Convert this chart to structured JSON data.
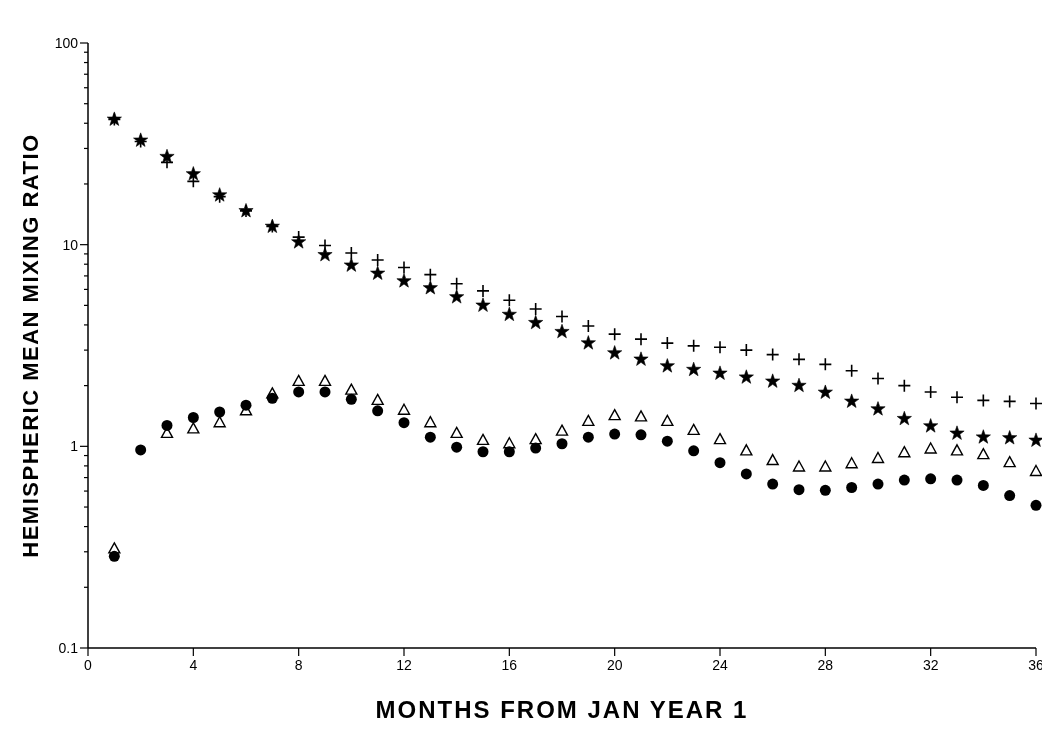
{
  "chart_data": {
    "type": "scatter",
    "xlabel": "MONTHS FROM JAN YEAR 1",
    "ylabel": "HEMISPHERIC MEAN MIXING RATIO",
    "log": "y",
    "grid": false,
    "x": [
      1,
      2,
      3,
      4,
      5,
      6,
      7,
      8,
      9,
      10,
      11,
      12,
      13,
      14,
      15,
      16,
      17,
      18,
      19,
      20,
      21,
      22,
      23,
      24,
      25,
      26,
      27,
      28,
      29,
      30,
      31,
      32,
      33,
      34,
      35,
      36
    ],
    "xlim": [
      0,
      36
    ],
    "xticks": [
      0,
      4,
      8,
      12,
      16,
      20,
      24,
      28,
      32,
      36
    ],
    "ylim": [
      0.1,
      100
    ],
    "yticks": [
      0.1,
      {
        "value": 0.2,
        "label": null
      },
      {
        "value": 0.3,
        "label": null
      },
      {
        "value": 0.4,
        "label": null
      },
      {
        "value": 0.5,
        "label": null
      },
      {
        "value": 0.6,
        "label": null
      },
      {
        "value": 0.7,
        "label": null
      },
      {
        "value": 0.8,
        "label": null
      },
      {
        "value": 0.9,
        "label": null
      },
      1,
      {
        "value": 2,
        "label": null
      },
      {
        "value": 3,
        "label": null
      },
      {
        "value": 4,
        "label": null
      },
      {
        "value": 5,
        "label": null
      },
      {
        "value": 6,
        "label": null
      },
      {
        "value": 7,
        "label": null
      },
      {
        "value": 8,
        "label": null
      },
      {
        "value": 9,
        "label": null
      },
      10,
      {
        "value": 20,
        "label": null
      },
      {
        "value": 30,
        "label": null
      },
      {
        "value": 40,
        "label": null
      },
      {
        "value": 50,
        "label": null
      },
      {
        "value": 60,
        "label": null
      },
      {
        "value": 70,
        "label": null
      },
      {
        "value": 80,
        "label": null
      },
      {
        "value": 90,
        "label": null
      },
      100
    ],
    "series": [
      {
        "color": "#000000",
        "marker": "star",
        "values": [
          41.8,
          32.9,
          27.3,
          22.4,
          17.6,
          14.7,
          12.3,
          10.3,
          8.9,
          7.9,
          7.2,
          6.6,
          6.1,
          5.5,
          5.0,
          4.5,
          4.1,
          3.7,
          3.25,
          2.9,
          2.7,
          2.5,
          2.4,
          2.3,
          2.2,
          2.1,
          2.0,
          1.85,
          1.67,
          1.53,
          1.37,
          1.26,
          1.16,
          1.11,
          1.1,
          1.07
        ]
      },
      {
        "color": "#000000",
        "marker": "cross",
        "values": [
          41.8,
          32.5,
          25.6,
          20.6,
          17.3,
          14.7,
          12.3,
          10.9,
          9.9,
          9.1,
          8.4,
          7.7,
          7.1,
          6.4,
          5.9,
          5.3,
          4.8,
          4.4,
          3.95,
          3.6,
          3.4,
          3.25,
          3.15,
          3.1,
          3.0,
          2.85,
          2.7,
          2.55,
          2.37,
          2.17,
          2.0,
          1.86,
          1.75,
          1.69,
          1.67,
          1.63
        ]
      },
      {
        "color": "#000000",
        "marker": "circle",
        "values": [
          0.285,
          0.96,
          1.27,
          1.39,
          1.48,
          1.6,
          1.73,
          1.86,
          1.86,
          1.71,
          1.5,
          1.31,
          1.11,
          0.99,
          0.94,
          0.94,
          0.98,
          1.03,
          1.11,
          1.15,
          1.14,
          1.06,
          0.95,
          0.83,
          0.73,
          0.65,
          0.61,
          0.605,
          0.625,
          0.65,
          0.68,
          0.69,
          0.68,
          0.64,
          0.57,
          0.51
        ]
      },
      {
        "color": "#000000",
        "marker": "triangle",
        "values": [
          0.31,
          null,
          1.16,
          1.22,
          1.31,
          1.5,
          1.82,
          2.1,
          2.1,
          1.9,
          1.69,
          1.51,
          1.31,
          1.16,
          1.07,
          1.03,
          1.08,
          1.19,
          1.33,
          1.42,
          1.4,
          1.33,
          1.2,
          1.08,
          0.95,
          0.85,
          0.79,
          0.79,
          0.82,
          0.87,
          0.93,
          0.97,
          0.95,
          0.91,
          0.83,
          0.75
        ]
      }
    ]
  }
}
